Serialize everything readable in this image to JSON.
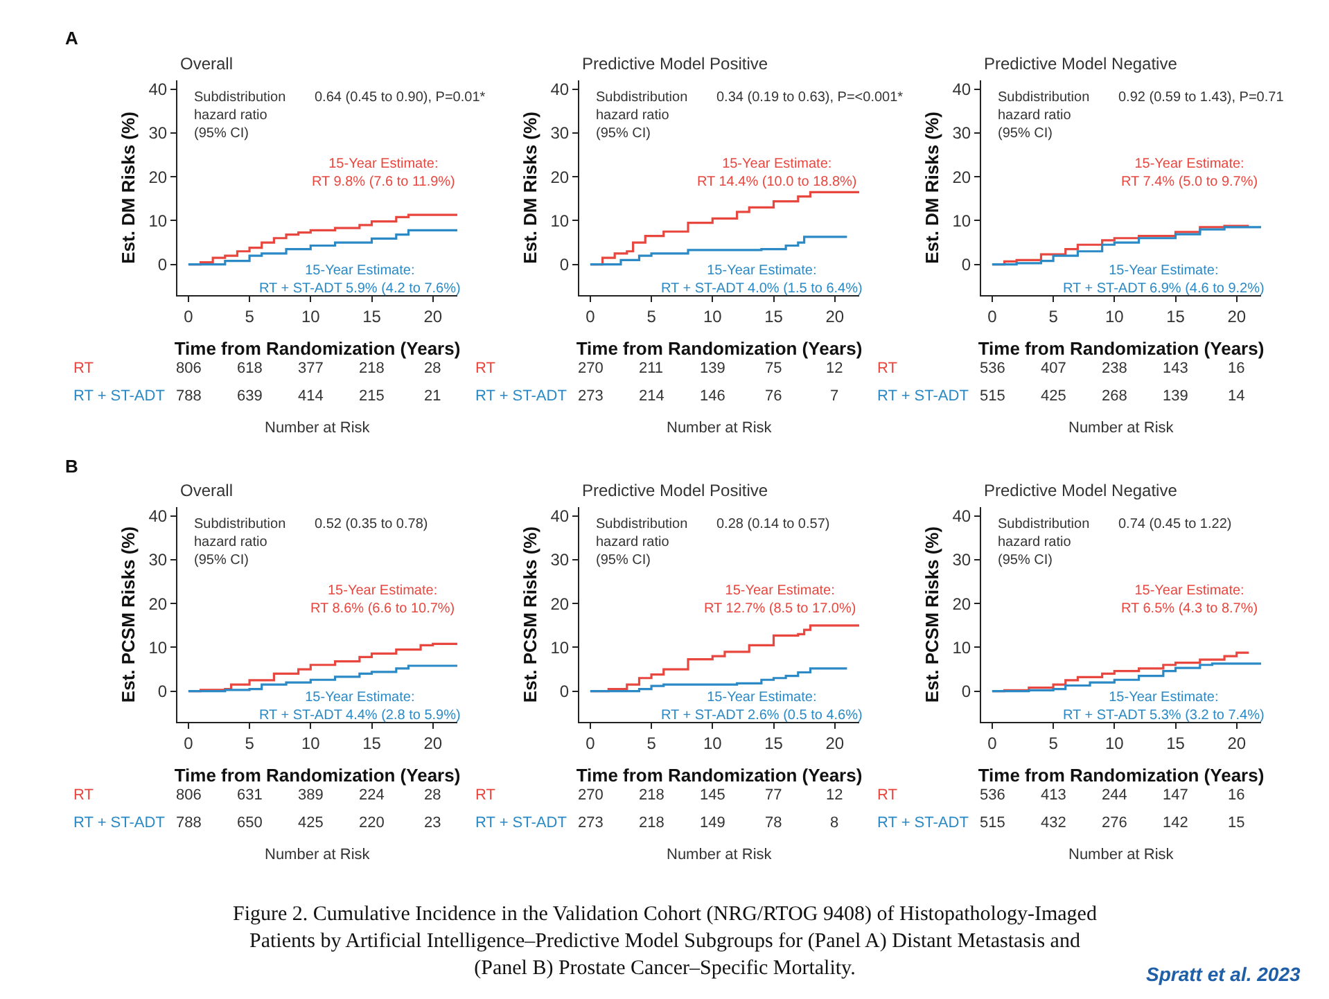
{
  "chart_data": [
    {
      "type": "step",
      "title": "Overall",
      "xlabel": "Time from Randomization (Years)",
      "ylabel": "Est. DM Risks (%)",
      "xlim": [
        -0.9,
        22
      ],
      "ylim": [
        -7,
        42
      ],
      "xticks": [
        0,
        5,
        10,
        15,
        20
      ],
      "yticks": [
        0,
        10,
        20,
        30,
        40
      ],
      "series": [
        {
          "color": "#e8473f",
          "x": [
            0,
            1,
            2,
            3,
            4,
            5,
            6,
            7,
            8,
            9,
            10,
            12,
            14,
            15,
            17,
            18,
            22
          ],
          "values": [
            0,
            0.5,
            1.5,
            2,
            3,
            3.8,
            5,
            6,
            6.8,
            7.3,
            7.8,
            8.3,
            9,
            9.8,
            10.8,
            11.3,
            11.3
          ]
        },
        {
          "color": "#2b8ac6",
          "x": [
            0,
            2,
            3,
            5,
            6,
            8,
            10,
            12,
            15,
            17,
            18,
            22
          ],
          "values": [
            0,
            0,
            0.8,
            2,
            2.5,
            3.5,
            4.3,
            5,
            5.9,
            6.8,
            7.8,
            7.8
          ]
        }
      ],
      "annotations": [
        "Subdistribution\nhazard ratio\n(95% CI)",
        "0.64 (0.45 to 0.90), P=0.01*",
        "15-Year Estimate:\nRT 9.8% (7.6 to 11.9%)",
        "15-Year Estimate:\nRT + ST-ADT 5.9% (4.2 to 7.6%)",
        "RT",
        "806",
        "618",
        "377",
        "218",
        "28",
        "RT + ST-ADT",
        "788",
        "639",
        "414",
        "215",
        "21",
        "Number at Risk",
        "A"
      ]
    },
    {
      "type": "step",
      "title": "Predictive Model Positive",
      "xlabel": "Time from Randomization (Years)",
      "ylabel": "Est. DM Risks (%)",
      "xlim": [
        -0.9,
        22
      ],
      "ylim": [
        -7,
        42
      ],
      "xticks": [
        0,
        5,
        10,
        15,
        20
      ],
      "yticks": [
        0,
        10,
        20,
        30,
        40
      ],
      "series": [
        {
          "color": "#e8473f",
          "x": [
            0,
            1,
            2,
            3,
            3.5,
            4.5,
            6,
            8,
            10,
            12,
            13,
            15,
            17,
            18,
            22
          ],
          "values": [
            0,
            1.5,
            2.5,
            3,
            5,
            6.5,
            7.5,
            9.5,
            10.5,
            12,
            13,
            14.4,
            15.5,
            16.5,
            16.5
          ]
        },
        {
          "color": "#2b8ac6",
          "x": [
            0,
            2.5,
            4,
            5,
            8,
            14,
            16,
            17,
            17.5,
            21
          ],
          "values": [
            0,
            1,
            2,
            2.5,
            3.3,
            3.5,
            4.3,
            5,
            6.3,
            6.3
          ]
        }
      ],
      "annotations": [
        "Subdistribution\nhazard ratio\n(95% CI)",
        "0.34 (0.19 to 0.63), P=<0.001*",
        "15-Year Estimate:\nRT 14.4% (10.0 to 18.8%)",
        "15-Year Estimate:\nRT + ST-ADT 4.0% (1.5 to 6.4%)",
        "RT",
        "270",
        "211",
        "139",
        "75",
        "12",
        "RT + ST-ADT",
        "273",
        "214",
        "146",
        "76",
        "7",
        "Number at Risk"
      ]
    },
    {
      "type": "step",
      "title": "Predictive Model Negative",
      "xlabel": "Time from Randomization (Years)",
      "ylabel": "Est. DM Risks (%)",
      "xlim": [
        -0.9,
        22
      ],
      "ylim": [
        -7,
        42
      ],
      "xticks": [
        0,
        5,
        10,
        15,
        20
      ],
      "yticks": [
        0,
        10,
        20,
        30,
        40
      ],
      "series": [
        {
          "color": "#e8473f",
          "x": [
            0,
            1,
            2,
            4,
            6,
            7,
            9,
            10,
            12,
            15,
            17,
            19,
            21
          ],
          "values": [
            0,
            0.7,
            1,
            2.3,
            3.5,
            4.5,
            5.5,
            6,
            6.5,
            7.4,
            8.5,
            8.8,
            8.8
          ]
        },
        {
          "color": "#2b8ac6",
          "x": [
            0,
            2,
            4,
            5,
            7,
            9,
            10,
            12,
            15,
            17,
            19,
            22
          ],
          "values": [
            0,
            0.3,
            0.8,
            2,
            3,
            4.5,
            5,
            6,
            6.9,
            8,
            8.5,
            8.5
          ]
        }
      ],
      "annotations": [
        "Subdistribution\nhazard ratio\n(95% CI)",
        "0.92 (0.59 to 1.43), P=0.71",
        "15-Year Estimate:\nRT 7.4% (5.0 to 9.7%)",
        "15-Year Estimate:\nRT + ST-ADT 6.9% (4.6 to 9.2%)",
        "RT",
        "536",
        "407",
        "238",
        "143",
        "16",
        "RT + ST-ADT",
        "515",
        "425",
        "268",
        "139",
        "14",
        "Number at Risk"
      ]
    },
    {
      "type": "step",
      "title": "Overall",
      "xlabel": "Time from Randomization (Years)",
      "ylabel": "Est. PCSM Risks (%)",
      "xlim": [
        -0.9,
        22
      ],
      "ylim": [
        -7,
        42
      ],
      "xticks": [
        0,
        5,
        10,
        15,
        20
      ],
      "yticks": [
        0,
        10,
        20,
        30,
        40
      ],
      "series": [
        {
          "color": "#e8473f",
          "x": [
            0,
            1,
            3,
            3.5,
            5,
            7,
            9,
            10,
            12,
            14,
            15,
            17,
            19,
            20,
            22
          ],
          "values": [
            0,
            0.3,
            0.5,
            1.5,
            2.5,
            4,
            5,
            6,
            6.8,
            7.8,
            8.6,
            9.5,
            10.5,
            10.8,
            10.8
          ]
        },
        {
          "color": "#2b8ac6",
          "x": [
            0,
            3,
            5,
            6,
            8,
            10,
            12,
            14,
            15,
            17,
            18,
            22
          ],
          "values": [
            0,
            0.3,
            0.5,
            1.5,
            2,
            2.6,
            3.3,
            4,
            4.4,
            5.2,
            5.8,
            5.8
          ]
        }
      ],
      "annotations": [
        "Subdistribution\nhazard ratio\n(95% CI)",
        "0.52 (0.35 to 0.78)",
        "15-Year Estimate:\nRT 8.6% (6.6 to 10.7%)",
        "15-Year Estimate:\nRT + ST-ADT 4.4% (2.8 to 5.9%)",
        "RT",
        "806",
        "631",
        "389",
        "224",
        "28",
        "RT + ST-ADT",
        "788",
        "650",
        "425",
        "220",
        "23",
        "Number at Risk",
        "B"
      ]
    },
    {
      "type": "step",
      "title": "Predictive Model Positive",
      "xlabel": "Time from Randomization (Years)",
      "ylabel": "Est. PCSM Risks (%)",
      "xlim": [
        -0.9,
        22
      ],
      "ylim": [
        -7,
        42
      ],
      "xticks": [
        0,
        5,
        10,
        15,
        20
      ],
      "yticks": [
        0,
        10,
        20,
        30,
        40
      ],
      "series": [
        {
          "color": "#e8473f",
          "x": [
            0,
            1.5,
            3,
            4,
            5,
            6,
            8,
            10,
            11,
            13,
            15,
            17,
            17.5,
            18,
            22
          ],
          "values": [
            0,
            0.5,
            1.5,
            3,
            3.8,
            5,
            7.3,
            8,
            9,
            10.5,
            12.7,
            13,
            14,
            15,
            15
          ]
        },
        {
          "color": "#2b8ac6",
          "x": [
            0,
            4,
            5,
            6,
            12,
            14,
            15,
            16,
            17,
            18,
            21
          ],
          "values": [
            0,
            0.5,
            1.2,
            1.5,
            1.8,
            2.6,
            3,
            3.5,
            4.3,
            5.2,
            5.2
          ]
        }
      ],
      "annotations": [
        "Subdistribution\nhazard ratio\n(95% CI)",
        "0.28 (0.14 to 0.57)",
        "15-Year Estimate:\nRT 12.7% (8.5 to 17.0%)",
        "15-Year Estimate:\nRT + ST-ADT 2.6% (0.5 to 4.6%)",
        "RT",
        "270",
        "218",
        "145",
        "77",
        "12",
        "RT + ST-ADT",
        "273",
        "218",
        "149",
        "78",
        "8",
        "Number at Risk"
      ]
    },
    {
      "type": "step",
      "title": "Predictive Model Negative",
      "xlabel": "Time from Randomization (Years)",
      "ylabel": "Est. PCSM Risks (%)",
      "xlim": [
        -0.9,
        22
      ],
      "ylim": [
        -7,
        42
      ],
      "xticks": [
        0,
        5,
        10,
        15,
        20
      ],
      "yticks": [
        0,
        10,
        20,
        30,
        40
      ],
      "series": [
        {
          "color": "#e8473f",
          "x": [
            0,
            1,
            3,
            5,
            6,
            7,
            9,
            10,
            12,
            14,
            15,
            17,
            19,
            20,
            21
          ],
          "values": [
            0,
            0.2,
            0.8,
            1.5,
            2.5,
            3.2,
            4,
            4.6,
            5.2,
            6,
            6.5,
            7.2,
            8,
            8.8,
            8.8
          ]
        },
        {
          "color": "#2b8ac6",
          "x": [
            0,
            3,
            5,
            6,
            8,
            10,
            12,
            14,
            15,
            17,
            18,
            22
          ],
          "values": [
            0,
            0.2,
            0.5,
            1.3,
            2,
            2.6,
            3.5,
            4.6,
            5.3,
            6,
            6.3,
            6.3
          ]
        }
      ],
      "annotations": [
        "Subdistribution\nhazard ratio\n(95% CI)",
        "0.74 (0.45 to 1.22)",
        "15-Year Estimate:\nRT 6.5% (4.3 to 8.7%)",
        "15-Year Estimate:\nRT + ST-ADT 5.3% (3.2 to 7.4%)",
        "RT",
        "536",
        "413",
        "244",
        "147",
        "16",
        "RT + ST-ADT",
        "515",
        "432",
        "276",
        "142",
        "15",
        "Number at Risk",
        "Figure 2. Cumulative Incidence in the Validation Cohort (NRG/RTOG 9408) of Histopathology-Imaged\nPatients by Artificial Intelligence–Predictive Model Subgroups for (Panel A) Distant Metastasis and\n(Panel B) Prostate Cancer–Specific Mortality.",
        "Spratt et al. 2023"
      ]
    }
  ]
}
